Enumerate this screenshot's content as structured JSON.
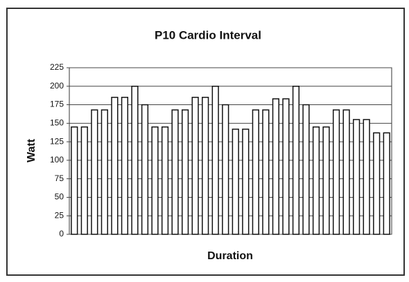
{
  "chart_data": {
    "type": "bar",
    "title": "P10 Cardio Interval",
    "x_label": "Duration",
    "y_label": "Watt",
    "categories": [
      null,
      null,
      null,
      null,
      null,
      null,
      null,
      null,
      null,
      null,
      null,
      null,
      null,
      null,
      null,
      null,
      null,
      null,
      null,
      null,
      null,
      null,
      null,
      null,
      null,
      null,
      null,
      null,
      null,
      null,
      null,
      null
    ],
    "values": [
      145,
      145,
      168,
      168,
      185,
      185,
      200,
      175,
      145,
      145,
      168,
      168,
      185,
      185,
      200,
      175,
      142,
      142,
      168,
      168,
      183,
      183,
      200,
      175,
      145,
      145,
      168,
      168,
      155,
      155,
      137,
      137
    ],
    "color": "#ffffff",
    "ylim": [
      0,
      225
    ],
    "yticks": [
      0,
      25,
      50,
      75,
      100,
      125,
      150,
      175,
      200,
      225
    ],
    "grid": true
  }
}
